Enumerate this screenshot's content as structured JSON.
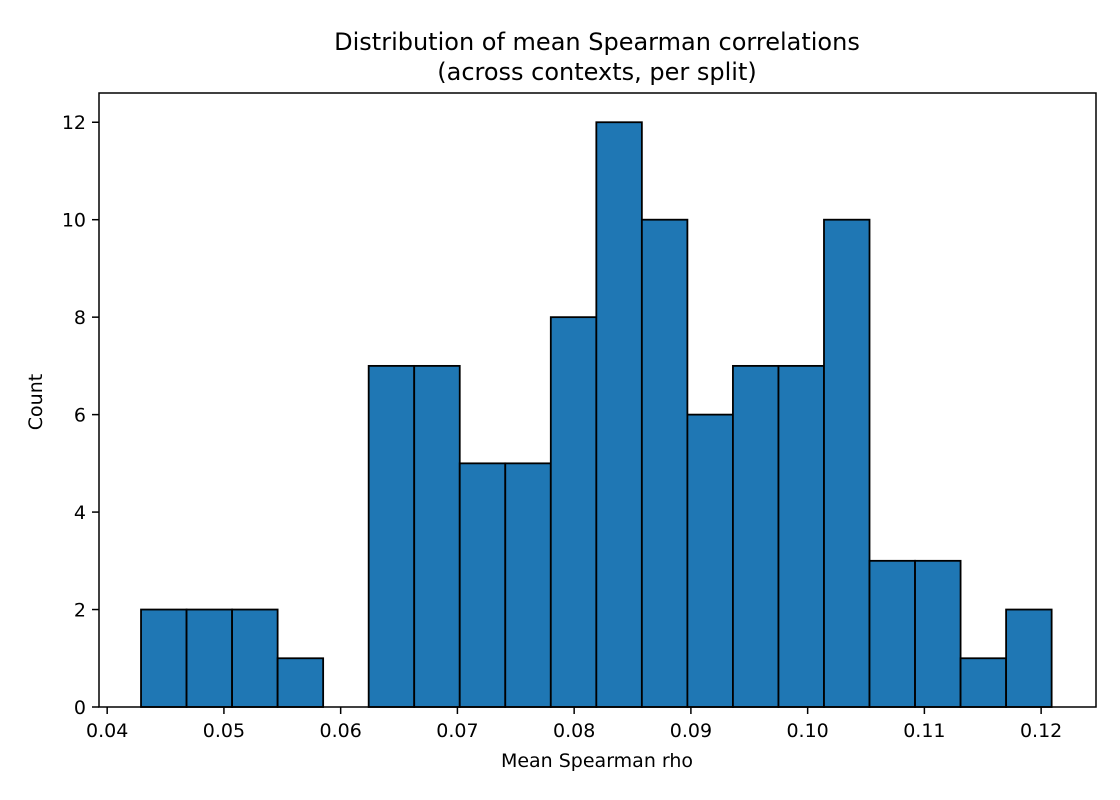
{
  "chart_data": {
    "type": "bar",
    "title": "Distribution of mean Spearman correlations",
    "subtitle": "(across contexts, per split)",
    "xlabel": "Mean Spearman rho",
    "ylabel": "Count",
    "xlim": [
      0.0393,
      0.1247
    ],
    "ylim": [
      0,
      12.6
    ],
    "xticks": [
      0.04,
      0.05,
      0.06,
      0.07,
      0.08,
      0.09,
      0.1,
      0.11,
      0.12
    ],
    "xtick_labels": [
      "0.04",
      "0.05",
      "0.06",
      "0.07",
      "0.08",
      "0.09",
      "0.10",
      "0.11",
      "0.12"
    ],
    "yticks": [
      0,
      2,
      4,
      6,
      8,
      10,
      12
    ],
    "ytick_labels": [
      "0",
      "2",
      "4",
      "6",
      "8",
      "10",
      "12"
    ],
    "bin_edges": [
      0.0429,
      0.0468,
      0.0507,
      0.0546,
      0.0585,
      0.0624,
      0.0663,
      0.0702,
      0.0741,
      0.078,
      0.0819,
      0.0858,
      0.0897,
      0.0936,
      0.0975,
      0.1014,
      0.1053,
      0.1092,
      0.1131,
      0.117,
      0.1209
    ],
    "values": [
      2,
      2,
      2,
      1,
      0,
      7,
      7,
      5,
      5,
      8,
      12,
      10,
      6,
      7,
      7,
      10,
      3,
      3,
      1,
      2
    ],
    "bar_color": "#1f77b4",
    "edge_color": "#000000",
    "grid": false
  }
}
